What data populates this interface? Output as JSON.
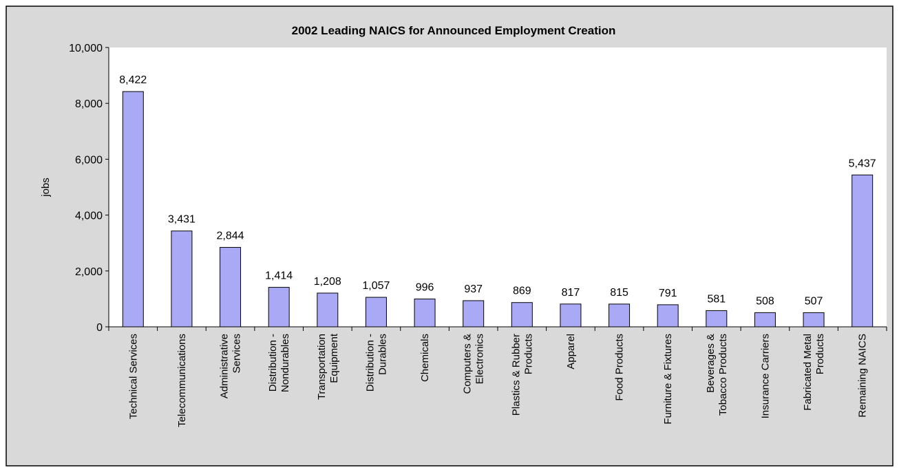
{
  "chart_data": {
    "type": "bar",
    "title": "2002 Leading NAICS for Announced Employment Creation",
    "xlabel": "",
    "ylabel": "jobs",
    "ylim": [
      0,
      10000
    ],
    "yticks": [
      0,
      2000,
      4000,
      6000,
      8000,
      10000
    ],
    "ytick_labels": [
      "0",
      "2,000",
      "4,000",
      "6,000",
      "8,000",
      "10,000"
    ],
    "grid": false,
    "legend": "none",
    "categories": [
      [
        "Technical Services"
      ],
      [
        "Telecommunications"
      ],
      [
        "Administrative",
        "Services"
      ],
      [
        "Distribution -",
        "Nondurables"
      ],
      [
        "Transportation",
        "Equipment"
      ],
      [
        "Distribution -",
        "Durables"
      ],
      [
        "Chemicals"
      ],
      [
        "Computers &",
        "Electronics"
      ],
      [
        "Plastics & Rubber",
        "Products"
      ],
      [
        "Apparel"
      ],
      [
        "Food Products"
      ],
      [
        "Furniture & Fixtures"
      ],
      [
        "Beverages &",
        "Tobacco Products"
      ],
      [
        "Insurance Carriers"
      ],
      [
        "Fabricated Metal",
        "Products"
      ],
      [
        "Remaining NAICS"
      ]
    ],
    "values": [
      8422,
      3431,
      2844,
      1414,
      1208,
      1057,
      996,
      937,
      869,
      817,
      815,
      791,
      581,
      508,
      507,
      5437
    ],
    "value_labels": [
      "8,422",
      "3,431",
      "2,844",
      "1,414",
      "1,208",
      "1,057",
      "996",
      "937",
      "869",
      "817",
      "815",
      "791",
      "581",
      "508",
      "507",
      "5,437"
    ],
    "colors": {
      "bar_fill": "#A9A9F5",
      "bar_stroke": "#000000",
      "plot_background": "#FFFFFF",
      "chart_background": "#D9D9D9",
      "frame": "#000000"
    }
  }
}
